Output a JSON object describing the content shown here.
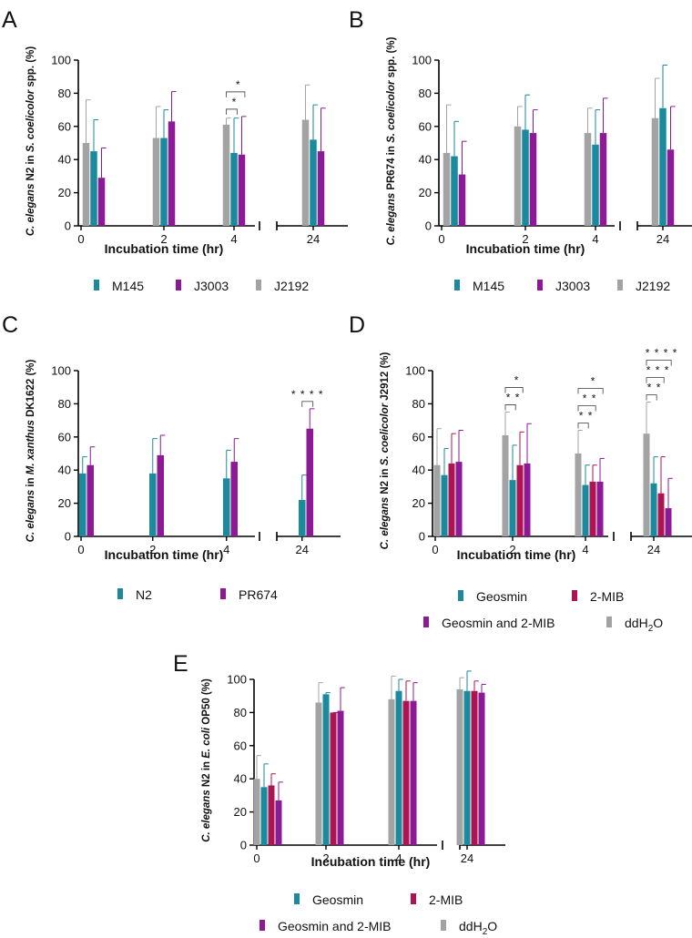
{
  "colors": {
    "teal": "#1a8a9c",
    "purple": "#8b1a94",
    "grey": "#a3a3a3",
    "crimson": "#ad1552"
  },
  "chart_data": [
    {
      "panel": "A",
      "type": "bar",
      "title": "",
      "xlabel": "Incubation time (hr)",
      "ylabel_italic": "C. elegans",
      "ylabel_mid": " N2 in ",
      "ylabel_italic2": "S. coelicolor",
      "ylabel_end": " spp. (%)",
      "categories": [
        "0",
        "2",
        "4",
        "24"
      ],
      "ylim": [
        0,
        100
      ],
      "yticks": [
        0,
        20,
        40,
        60,
        80,
        100
      ],
      "bar_order": [
        "J2192",
        "M145",
        "J3003"
      ],
      "series": [
        {
          "name": "M145",
          "color": "teal",
          "values": [
            45,
            53,
            44,
            52
          ],
          "errors": [
            19,
            17,
            21,
            21
          ]
        },
        {
          "name": "J3003",
          "color": "purple",
          "values": [
            29,
            63,
            43,
            45
          ],
          "errors": [
            18,
            18,
            23,
            26
          ]
        },
        {
          "name": "J2192",
          "color": "grey",
          "values": [
            50,
            53,
            61,
            64
          ],
          "errors": [
            26,
            19,
            4,
            21
          ]
        }
      ],
      "legend_rows": [
        [
          "M145",
          "J3003",
          "J2192"
        ]
      ],
      "significance": [
        {
          "category": "4",
          "labels": [
            "*",
            "*"
          ]
        }
      ]
    },
    {
      "panel": "B",
      "type": "bar",
      "xlabel": "Incubation time (hr)",
      "ylabel_italic": "C. elegans",
      "ylabel_mid": " PR674 in ",
      "ylabel_italic2": "S. coelicolor",
      "ylabel_end": " spp. (%)",
      "categories": [
        "0",
        "2",
        "4",
        "24"
      ],
      "ylim": [
        0,
        100
      ],
      "yticks": [
        0,
        20,
        40,
        60,
        80,
        100
      ],
      "bar_order": [
        "J2192",
        "M145",
        "J3003"
      ],
      "series": [
        {
          "name": "M145",
          "color": "teal",
          "values": [
            42,
            58,
            49,
            71
          ],
          "errors": [
            21,
            21,
            21,
            26
          ]
        },
        {
          "name": "J3003",
          "color": "purple",
          "values": [
            31,
            56,
            56,
            46
          ],
          "errors": [
            20,
            14,
            21,
            26
          ]
        },
        {
          "name": "J2192",
          "color": "grey",
          "values": [
            44,
            60,
            56,
            65
          ],
          "errors": [
            29,
            12,
            15,
            24
          ]
        }
      ],
      "legend_rows": [
        [
          "M145",
          "J3003",
          "J2192"
        ]
      ],
      "significance": []
    },
    {
      "panel": "C",
      "type": "bar",
      "xlabel": "Incubation time (hr)",
      "ylabel_italic": "C. elegans",
      "ylabel_mid": " in ",
      "ylabel_italic2": "M. xanthus",
      "ylabel_end": " DK1622 (%)",
      "categories": [
        "0",
        "2",
        "4",
        "24"
      ],
      "ylim": [
        0,
        100
      ],
      "yticks": [
        0,
        20,
        40,
        60,
        80,
        100
      ],
      "bar_order": [
        "N2",
        "PR674"
      ],
      "series": [
        {
          "name": "N2",
          "color": "teal",
          "values": [
            38,
            38,
            35,
            22
          ],
          "errors": [
            10,
            21,
            17,
            15
          ]
        },
        {
          "name": "PR674",
          "color": "purple",
          "values": [
            43,
            49,
            45,
            65
          ],
          "errors": [
            11,
            12,
            14,
            12
          ]
        }
      ],
      "legend_rows": [
        [
          "N2",
          "PR674"
        ]
      ],
      "significance": [
        {
          "category": "24",
          "labels": [
            "* * * *"
          ]
        }
      ]
    },
    {
      "panel": "D",
      "type": "bar",
      "xlabel": "Incubation time (hr)",
      "ylabel_italic": "C. elegans",
      "ylabel_mid": " N2 in ",
      "ylabel_italic2": "S. coelicolor",
      "ylabel_end": " J2912 (%)",
      "categories": [
        "0",
        "2",
        "4",
        "24"
      ],
      "ylim": [
        0,
        100
      ],
      "yticks": [
        0,
        20,
        40,
        60,
        80,
        100
      ],
      "bar_order": [
        "ddH2O",
        "Geosmin",
        "2-MIB",
        "Geosmin and 2-MIB"
      ],
      "series": [
        {
          "name": "Geosmin",
          "color": "teal",
          "values": [
            37,
            34,
            31,
            32
          ],
          "errors": [
            16,
            21,
            12,
            16
          ]
        },
        {
          "name": "2-MIB",
          "color": "crimson",
          "values": [
            44,
            43,
            33,
            26
          ],
          "errors": [
            18,
            20,
            10,
            22
          ]
        },
        {
          "name": "Geosmin and 2-MIB",
          "color": "purple",
          "values": [
            45,
            44,
            33,
            17
          ],
          "errors": [
            19,
            24,
            14,
            18
          ]
        },
        {
          "name": "ddH2O",
          "color": "grey",
          "values": [
            43,
            61,
            50,
            62
          ],
          "errors": [
            22,
            14,
            14,
            19
          ]
        }
      ],
      "legend_rows": [
        [
          "Geosmin",
          "2-MIB"
        ],
        [
          "Geosmin and 2-MIB",
          "ddH2O"
        ]
      ],
      "significance": [
        {
          "category": "2",
          "labels": [
            "* *",
            "*"
          ]
        },
        {
          "category": "4",
          "labels": [
            "* *",
            "* *",
            "*"
          ]
        },
        {
          "category": "24",
          "labels": [
            "* *",
            "* * *",
            "* * * *"
          ]
        }
      ]
    },
    {
      "panel": "E",
      "type": "bar",
      "xlabel": "Incubation time (hr)",
      "ylabel_italic": "C. elegans",
      "ylabel_mid": " N2 in ",
      "ylabel_italic2": "E. coli",
      "ylabel_end": " OP50 (%)",
      "categories": [
        "0",
        "2",
        "4",
        "24"
      ],
      "ylim": [
        0,
        100
      ],
      "yticks": [
        0,
        20,
        40,
        60,
        80,
        100
      ],
      "bar_order": [
        "ddH2O",
        "Geosmin",
        "2-MIB",
        "Geosmin and 2-MIB"
      ],
      "series": [
        {
          "name": "Geosmin",
          "color": "teal",
          "values": [
            35,
            91,
            93,
            93
          ],
          "errors": [
            14,
            1,
            7,
            12
          ]
        },
        {
          "name": "2-MIB",
          "color": "crimson",
          "values": [
            36,
            80,
            87,
            93
          ],
          "errors": [
            7,
            0,
            12,
            6
          ]
        },
        {
          "name": "Geosmin and 2-MIB",
          "color": "purple",
          "values": [
            27,
            81,
            87,
            92
          ],
          "errors": [
            11,
            14,
            11,
            5
          ]
        },
        {
          "name": "ddH2O",
          "color": "grey",
          "values": [
            40,
            86,
            88,
            94
          ],
          "errors": [
            14,
            12,
            14,
            7
          ]
        }
      ],
      "legend_rows": [
        [
          "Geosmin",
          "2-MIB"
        ],
        [
          "Geosmin and 2-MIB",
          "ddH2O"
        ]
      ],
      "significance": []
    }
  ]
}
